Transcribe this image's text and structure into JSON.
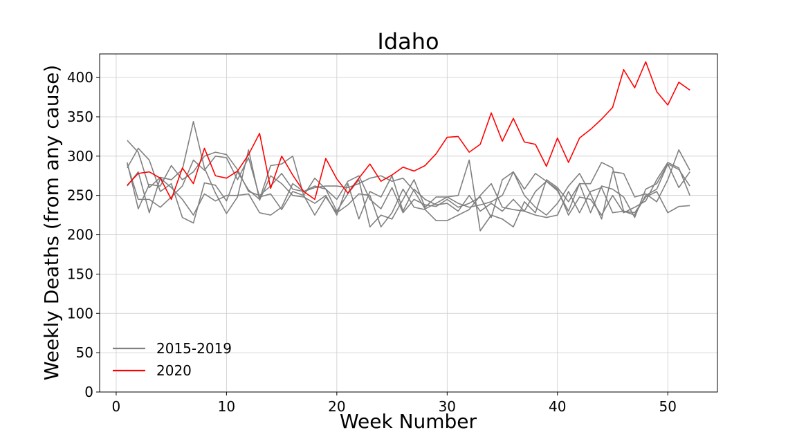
{
  "chart_data": {
    "type": "line",
    "title": "Idaho",
    "xlabel": "Week Number",
    "ylabel": "Weekly Deaths (from any cause)",
    "xlim": [
      -1.5,
      54.5
    ],
    "ylim": [
      0,
      430
    ],
    "xticks": [
      0,
      10,
      20,
      30,
      40,
      50
    ],
    "yticks": [
      0,
      50,
      100,
      150,
      200,
      250,
      300,
      350,
      400
    ],
    "grid": true,
    "legend_position": "lower-left",
    "legend": [
      {
        "label": "2015-2019",
        "color": "#808080"
      },
      {
        "label": "2020",
        "color": "#ff0000"
      }
    ],
    "x": [
      1,
      2,
      3,
      4,
      5,
      6,
      7,
      8,
      9,
      10,
      11,
      12,
      13,
      14,
      15,
      16,
      17,
      18,
      19,
      20,
      21,
      22,
      23,
      24,
      25,
      26,
      27,
      28,
      29,
      30,
      31,
      32,
      33,
      34,
      35,
      36,
      37,
      38,
      39,
      40,
      41,
      42,
      43,
      44,
      45,
      46,
      47,
      48,
      49,
      50,
      51,
      52
    ],
    "series": [
      {
        "color": "#808080",
        "values": [
          320,
          305,
          260,
          273,
          270,
          283,
          344,
          285,
          253,
          227,
          248,
          308,
          244,
          275,
          265,
          250,
          248,
          240,
          250,
          225,
          265,
          220,
          255,
          248,
          275,
          230,
          258,
          245,
          238,
          240,
          230,
          250,
          230,
          240,
          230,
          245,
          230,
          225,
          222,
          225,
          255,
          228,
          255,
          260,
          228,
          230,
          225,
          250,
          258,
          290,
          283,
          262
        ]
      },
      {
        "color": "#808080",
        "values": [
          285,
          310,
          295,
          255,
          265,
          222,
          215,
          266,
          263,
          243,
          280,
          257,
          245,
          288,
          290,
          300,
          250,
          272,
          258,
          245,
          268,
          275,
          245,
          233,
          260,
          228,
          245,
          238,
          236,
          245,
          235,
          240,
          248,
          222,
          270,
          280,
          250,
          235,
          225,
          240,
          262,
          278,
          252,
          220,
          280,
          278,
          248,
          252,
          242,
          270,
          308,
          282
        ]
      },
      {
        "color": "#808080",
        "values": [
          292,
          233,
          264,
          262,
          288,
          270,
          280,
          300,
          305,
          302,
          283,
          255,
          250,
          262,
          278,
          258,
          255,
          260,
          262,
          262,
          260,
          265,
          272,
          275,
          268,
          272,
          256,
          233,
          240,
          248,
          240,
          235,
          238,
          242,
          250,
          280,
          258,
          278,
          268,
          256,
          230,
          265,
          265,
          292,
          285,
          230,
          228,
          248,
          255,
          228,
          236,
          237
        ]
      },
      {
        "color": "#808080",
        "values": [
          262,
          280,
          228,
          272,
          260,
          245,
          225,
          252,
          243,
          250,
          250,
          252,
          228,
          225,
          235,
          265,
          255,
          262,
          258,
          230,
          252,
          270,
          210,
          225,
          220,
          245,
          270,
          235,
          248,
          248,
          250,
          295,
          205,
          225,
          220,
          210,
          242,
          228,
          270,
          260,
          242,
          265,
          228,
          262,
          258,
          248,
          222,
          258,
          265,
          290,
          260,
          280
        ]
      },
      {
        "color": "#808080",
        "values": [
          290,
          245,
          245,
          235,
          248,
          262,
          295,
          282,
          300,
          298,
          270,
          298,
          248,
          252,
          232,
          255,
          250,
          225,
          248,
          228,
          238,
          252,
          250,
          210,
          228,
          258,
          235,
          232,
          218,
          218,
          225,
          232,
          250,
          265,
          235,
          232,
          230,
          255,
          268,
          258,
          225,
          248,
          245,
          225,
          250,
          228,
          235,
          243,
          270,
          292,
          285,
          250
        ]
      },
      {
        "color": "#ff0000",
        "values": [
          263,
          278,
          280,
          272,
          245,
          285,
          265,
          310,
          275,
          272,
          281,
          302,
          329,
          259,
          300,
          276,
          255,
          245,
          297,
          271,
          253,
          272,
          290,
          268,
          276,
          286,
          281,
          288,
          303,
          324,
          325,
          305,
          315,
          355,
          319,
          348,
          318,
          315,
          287,
          323,
          292,
          323,
          334,
          347,
          362,
          410,
          387,
          420,
          382,
          365,
          394,
          384
        ]
      }
    ]
  }
}
